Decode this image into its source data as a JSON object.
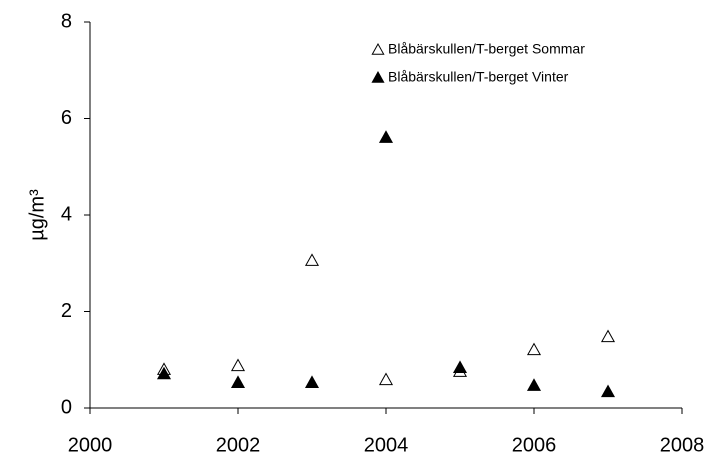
{
  "chart_data": {
    "type": "scatter",
    "y_label": "µg/m³",
    "xlim": [
      2000,
      2008
    ],
    "xticks": [
      2000,
      2002,
      2004,
      2006,
      2008
    ],
    "ylim": [
      0,
      8
    ],
    "yticks": [
      0,
      2,
      4,
      6,
      8
    ],
    "legend": "top-right",
    "series": [
      {
        "name": "Blåbärskullen/T-berget Sommar",
        "color": "#000000",
        "marker": "triangle-open",
        "x": [
          2001,
          2002,
          2003,
          2004,
          2005,
          2006,
          2007
        ],
        "values": [
          0.79,
          0.87,
          3.05,
          0.58,
          0.75,
          1.2,
          1.47
        ]
      },
      {
        "name": "Blåbärskullen/T-berget Vinter",
        "color": "#000000",
        "marker": "triangle-filled",
        "x": [
          2001,
          2002,
          2003,
          2004,
          2005,
          2006,
          2007
        ],
        "values": [
          0.7,
          0.52,
          0.52,
          5.6,
          0.83,
          0.46,
          0.33
        ]
      }
    ]
  }
}
